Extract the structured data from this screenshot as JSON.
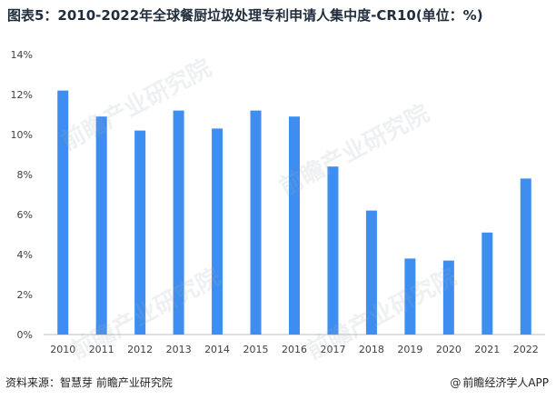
{
  "title": "图表5：2010-2022年全球餐厨垃圾处理专利申请人集中度-CR10(单位：%)",
  "watermark_text": "前瞻产业研究院",
  "footer": {
    "source_label": "资料来源：",
    "source_text": "智慧芽 前瞻产业研究院",
    "brand": "前瞻经济学人APP",
    "brand_icon": "at-icon"
  },
  "colors": {
    "bar": "#3d8ef0",
    "axis": "#bfbfbf",
    "tick_text": "#404040",
    "title": "#1f2d3d"
  },
  "chart_data": {
    "type": "bar",
    "title": "",
    "xlabel": "",
    "ylabel": "",
    "categories": [
      "2010",
      "2011",
      "2012",
      "2013",
      "2014",
      "2015",
      "2016",
      "2017",
      "2018",
      "2019",
      "2020",
      "2021",
      "2022"
    ],
    "values": [
      12.2,
      10.9,
      10.2,
      11.2,
      10.3,
      11.2,
      10.9,
      8.4,
      6.2,
      3.8,
      3.7,
      5.1,
      7.8
    ],
    "ylim": [
      0,
      14
    ],
    "yticks": [
      0,
      2,
      4,
      6,
      8,
      10,
      12,
      14
    ],
    "ytick_labels": [
      "0%",
      "2%",
      "4%",
      "6%",
      "8%",
      "10%",
      "12%",
      "14%"
    ],
    "grid": false,
    "legend": "none"
  }
}
